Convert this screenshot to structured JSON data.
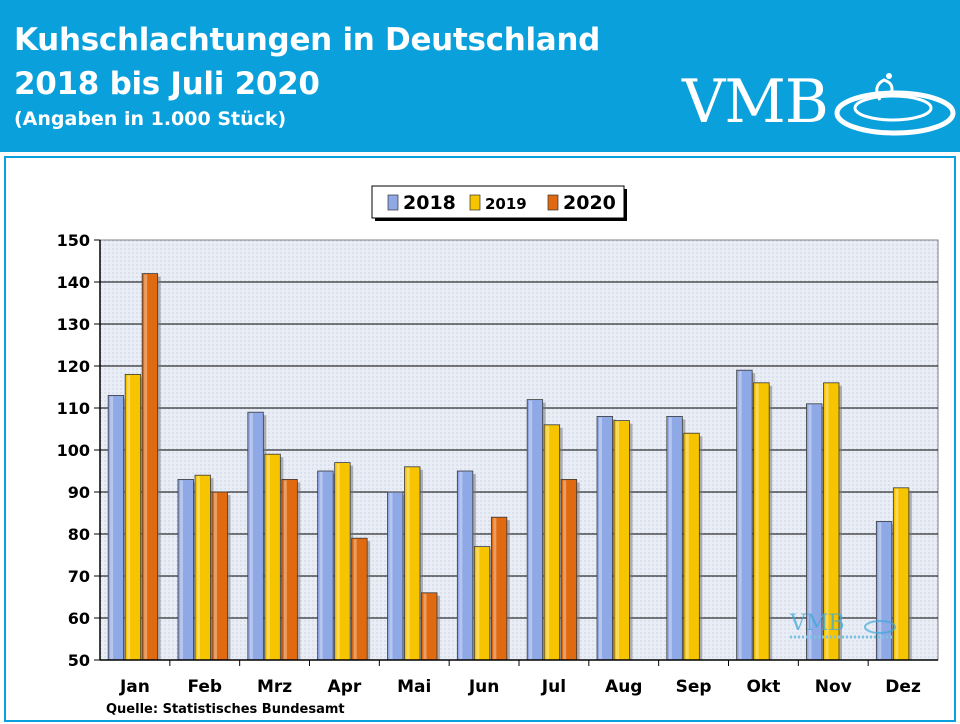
{
  "header": {
    "title_line1": "Kuhschlachtungen in Deutschland",
    "title_line2": "2018 bis Juli 2020",
    "subtitle": "(Angaben in 1.000 Stück)",
    "logo_text": "VMB",
    "background_color": "#0aa0dc"
  },
  "watermark": {
    "logo_text": "VMB"
  },
  "source": "Quelle:  Statistisches Bundesamt",
  "chart_data": {
    "type": "bar",
    "categories": [
      "Jan",
      "Feb",
      "Mrz",
      "Apr",
      "Mai",
      "Jun",
      "Jul",
      "Aug",
      "Sep",
      "Okt",
      "Nov",
      "Dez"
    ],
    "series": [
      {
        "name": "2018",
        "color": "#8fa8e6",
        "values": [
          113,
          93,
          109,
          95,
          90,
          95,
          112,
          108,
          108,
          119,
          111,
          83
        ]
      },
      {
        "name": "2019",
        "color": "#f7c400",
        "values": [
          118,
          94,
          99,
          97,
          96,
          77,
          106,
          107,
          104,
          116,
          116,
          91
        ]
      },
      {
        "name": "2020",
        "color": "#e06a10",
        "values": [
          142,
          90,
          93,
          79,
          66,
          84,
          93,
          null,
          null,
          null,
          null,
          null
        ]
      }
    ],
    "ylim": [
      50,
      150
    ],
    "yticks": [
      50,
      60,
      70,
      80,
      90,
      100,
      110,
      120,
      130,
      140,
      150
    ],
    "grid": true,
    "legend_position": "top-center",
    "plot_background": "#e8ecf4"
  }
}
